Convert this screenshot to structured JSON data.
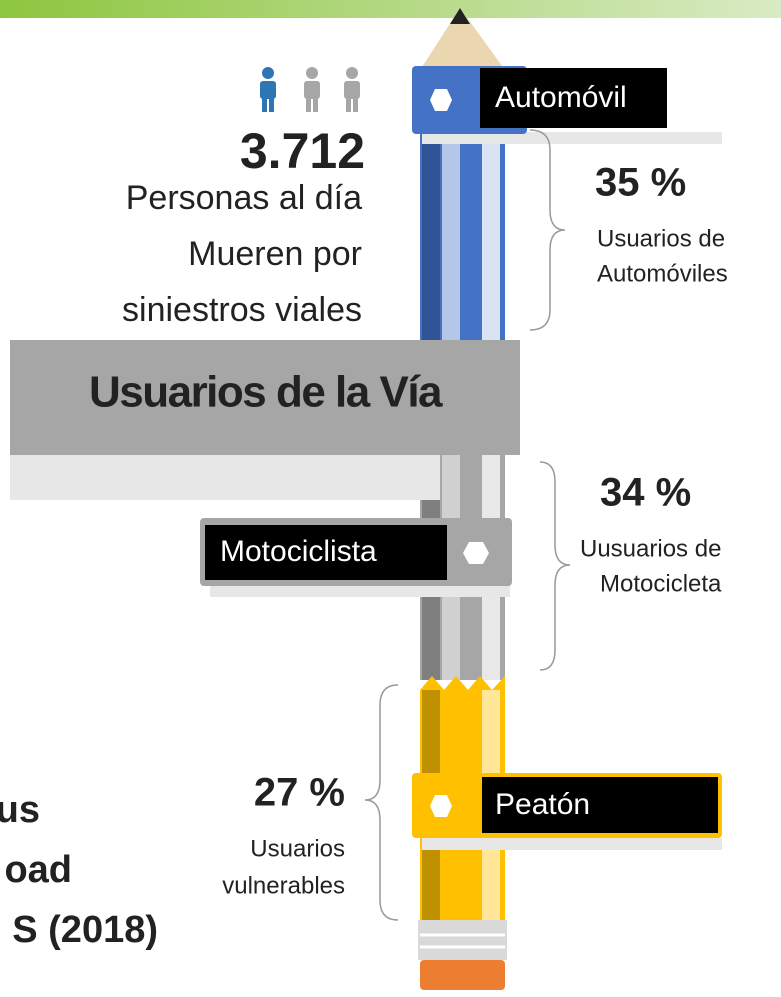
{
  "stats": {
    "count": "3.712",
    "lines": [
      "Personas al día",
      "Mueren por",
      "siniestros viales"
    ]
  },
  "band_title": "Usuarios de la Vía",
  "segments": [
    {
      "label": "Automóvil",
      "percent": "35 %",
      "description": [
        "Usuarios de",
        "Automóviles"
      ]
    },
    {
      "label": "Motociclista",
      "percent": "34 %",
      "description": [
        "Uusuarios de",
        "Motocicleta"
      ]
    },
    {
      "label": "Peatón",
      "percent": "27 %",
      "description": [
        "Usuarios",
        "vulnerables"
      ]
    }
  ],
  "source_fragment": [
    "us",
    "oad",
    "S (2018)"
  ]
}
